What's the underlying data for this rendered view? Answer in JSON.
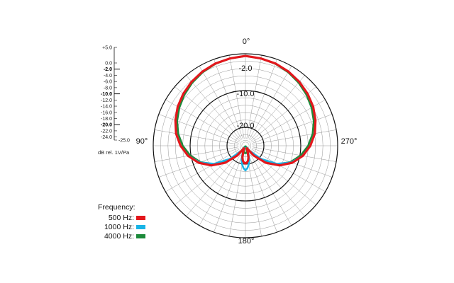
{
  "chart_data": {
    "type": "polar",
    "angle_labels": [
      "0°",
      "90°",
      "180°",
      "270°"
    ],
    "ring_labels": [
      "-2.0",
      "-10.0",
      "-20.0"
    ],
    "scale": {
      "ticks": [
        "+5.0",
        "0.0",
        "-2.0",
        "-4.0",
        "-6.0",
        "-8.0",
        "-10.0",
        "-12.0",
        "-14.0",
        "-16.0",
        "-18.0",
        "-20.0",
        "-22.0",
        "-24.0",
        "-25.0"
      ],
      "bold_ticks": [
        "-2.0",
        "-10.0",
        "-20.0"
      ],
      "unit": "dB rel. 1V/Pa"
    },
    "legend_title": "Frequency:",
    "series": [
      {
        "name": "500 Hz:",
        "color": "#e3171c",
        "angles_deg": [
          0,
          10,
          20,
          30,
          40,
          50,
          60,
          70,
          80,
          90,
          100,
          110,
          120,
          130,
          140,
          150,
          160,
          165,
          170,
          175,
          180
        ],
        "level_db": [
          -0.6,
          -0.9,
          -1.2,
          -1.7,
          -2.3,
          -3.0,
          -3.8,
          -4.8,
          -5.9,
          -7.4,
          -9.2,
          -11.5,
          -14.3,
          -17.8,
          -21.5,
          -24.2,
          -23.2,
          -21.8,
          -20.9,
          -20.4,
          -20.2
        ]
      },
      {
        "name": "1000 Hz:",
        "color": "#19b4e6",
        "angles_deg": [
          0,
          10,
          20,
          30,
          40,
          50,
          60,
          70,
          80,
          90,
          100,
          110,
          120,
          130,
          140,
          150,
          160,
          165,
          170,
          175,
          180
        ],
        "level_db": [
          -0.6,
          -0.9,
          -1.2,
          -1.7,
          -2.3,
          -3.0,
          -3.8,
          -4.8,
          -5.9,
          -7.4,
          -9.2,
          -11.8,
          -15.2,
          -19.4,
          -23.0,
          -24.4,
          -22.5,
          -21.0,
          -19.8,
          -18.9,
          -18.3
        ]
      },
      {
        "name": "4000 Hz:",
        "color": "#1c8a3a",
        "angles_deg": [
          0,
          10,
          20,
          30,
          40,
          50,
          60,
          70,
          80,
          90,
          100,
          110,
          120,
          130,
          140,
          150,
          160,
          165,
          170,
          175,
          180
        ],
        "level_db": [
          -0.6,
          -0.9,
          -1.3,
          -1.9,
          -2.6,
          -3.4,
          -4.3,
          -5.3,
          -6.5,
          -8.0,
          -9.8,
          -12.0,
          -15.0,
          -18.6,
          -22.3,
          -24.8,
          -24.2,
          -23.5,
          -23.1,
          -23.0,
          -23.0
        ]
      }
    ]
  }
}
